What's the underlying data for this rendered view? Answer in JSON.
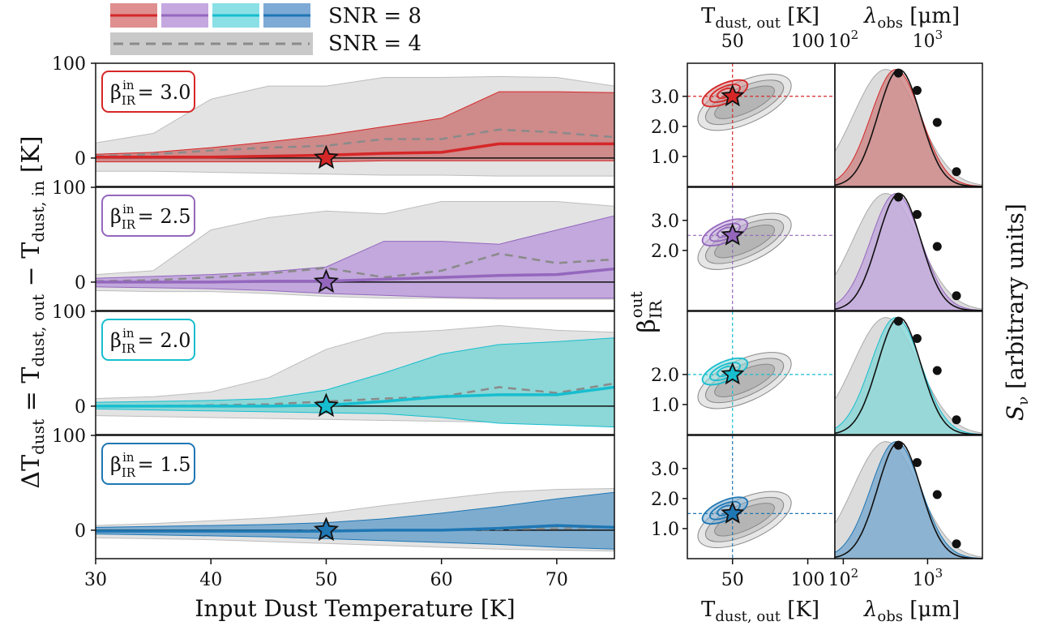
{
  "chart_data": [
    {
      "type": "line",
      "panel": "left",
      "xlabel": "Input Dust Temperature [K]",
      "ylabel": "ΔT_dust = T_dust, out − T_dust, in [K]",
      "xlim": [
        30,
        75
      ],
      "ylim": [
        -30,
        100
      ],
      "x_ticks": [
        "30",
        "40",
        "50",
        "60",
        "70"
      ],
      "y_ticks": [
        "0",
        "100"
      ],
      "legend": [
        {
          "label": "SNR = 8",
          "style": "solid colored lines with shaded bands",
          "colors": [
            "#d62728",
            "#9467bd",
            "#17becf",
            "#1f77b4"
          ]
        },
        {
          "label": "SNR = 4",
          "style": "grey dashed line with grey band"
        }
      ],
      "x": [
        30,
        35,
        40,
        45,
        50,
        55,
        60,
        65,
        70,
        75
      ],
      "rows": [
        {
          "beta_label": "β_IR^in = 3.0",
          "beta_main": "β",
          "beta_sub": "IR",
          "beta_sup": "in",
          "beta_val": "= 3.0",
          "color": "#d62728",
          "fill": "#cf8a8a",
          "star_x": 50,
          "snr8_median": [
            1,
            1,
            1,
            2,
            3,
            5,
            6,
            15,
            15,
            15
          ],
          "snr8_low": [
            -4,
            -4,
            -4,
            -4,
            -4,
            -3,
            -3,
            -3,
            -3,
            -3
          ],
          "snr8_high": [
            4,
            6,
            11,
            17,
            24,
            33,
            42,
            70,
            70,
            69
          ],
          "snr4_median": [
            2,
            4,
            8,
            11,
            13,
            20,
            20,
            30,
            27,
            22
          ],
          "snr4_low": [
            -14,
            -14,
            -15,
            -16,
            -17,
            -18,
            -18,
            -19,
            -19,
            -19
          ],
          "snr4_high": [
            16,
            26,
            62,
            76,
            76,
            85,
            85,
            86,
            85,
            76
          ]
        },
        {
          "beta_label": "β_IR^in = 2.5",
          "beta_main": "β",
          "beta_sub": "IR",
          "beta_sup": "in",
          "beta_val": "= 2.5",
          "color": "#9467bd",
          "fill": "#c2a8dc",
          "star_x": 50,
          "snr8_median": [
            0,
            0,
            0,
            1,
            1,
            3,
            5,
            7,
            8,
            14
          ],
          "snr8_low": [
            -5,
            -6,
            -7,
            -9,
            -12,
            -14,
            -16,
            -17,
            -17,
            -17
          ],
          "snr8_high": [
            4,
            6,
            8,
            11,
            16,
            43,
            43,
            40,
            55,
            70
          ],
          "snr4_median": [
            1,
            2,
            5,
            9,
            15,
            5,
            12,
            30,
            20,
            24
          ],
          "snr4_low": [
            -9,
            -10,
            -10,
            -12,
            -15,
            -17,
            -17,
            -18,
            -18,
            -18
          ],
          "snr4_high": [
            8,
            12,
            55,
            68,
            75,
            72,
            85,
            85,
            85,
            80
          ]
        },
        {
          "beta_label": "β_IR^in = 2.0",
          "beta_main": "β",
          "beta_sub": "IR",
          "beta_sup": "in",
          "beta_val": "= 2.0",
          "color": "#17becf",
          "fill": "#8cd7d7",
          "star_x": 50,
          "snr8_median": [
            0,
            0,
            0,
            0,
            1,
            5,
            10,
            12,
            12,
            20
          ],
          "snr8_low": [
            -3,
            -4,
            -5,
            -6,
            -7,
            -8,
            -12,
            -18,
            -20,
            -22
          ],
          "snr8_high": [
            4,
            5,
            6,
            8,
            17,
            35,
            55,
            65,
            68,
            72
          ],
          "snr4_median": [
            0,
            0,
            1,
            2,
            5,
            8,
            10,
            20,
            14,
            24
          ],
          "snr4_low": [
            -10,
            -11,
            -12,
            -13,
            -14,
            -15,
            -16,
            -17,
            -18,
            -18
          ],
          "snr4_high": [
            8,
            10,
            15,
            30,
            60,
            77,
            80,
            85,
            80,
            78
          ]
        },
        {
          "beta_label": "β_IR^in = 1.5",
          "beta_main": "β",
          "beta_sub": "IR",
          "beta_sup": "in",
          "beta_val": "= 1.5",
          "color": "#1f77b4",
          "fill": "#7eaccf",
          "star_x": 50,
          "snr8_median": [
            -1,
            -1,
            -1,
            -1,
            -1,
            0,
            0,
            2,
            5,
            3
          ],
          "snr8_low": [
            -4,
            -5,
            -6,
            -7,
            -9,
            -11,
            -13,
            -15,
            -18,
            -20
          ],
          "snr8_high": [
            3,
            4,
            5,
            6,
            8,
            12,
            18,
            25,
            33,
            40
          ],
          "snr4_median": [
            -1,
            -1,
            -1,
            -1,
            0,
            0,
            0,
            1,
            2,
            3
          ],
          "snr4_low": [
            -8,
            -9,
            -10,
            -12,
            -14,
            -16,
            -18,
            -20,
            -21,
            -22
          ],
          "snr4_high": [
            5,
            7,
            10,
            13,
            18,
            26,
            33,
            40,
            43,
            44
          ]
        }
      ]
    },
    {
      "type": "contour",
      "panel": "middle",
      "xlabel": "T_dust, out [K]",
      "top_label": "T_dust, out [K]",
      "ylabel": "β_IR^out",
      "x_ticks": [
        "50",
        "100"
      ],
      "y_ticks_by_row": [
        [
          "3.0",
          "2.0",
          "1.0"
        ],
        [
          "3.0",
          "2.0"
        ],
        [
          "2.0",
          "1.0"
        ],
        [
          "3.0",
          "2.0",
          "1.0"
        ]
      ],
      "input_T": 50,
      "input_beta": [
        3.0,
        2.5,
        2.0,
        1.5
      ]
    },
    {
      "type": "line",
      "panel": "right",
      "xlabel": "λ_obs [μm]",
      "top_label": "λ_obs [μm]",
      "ylabel": "S_ν [arbitrary units]",
      "x_ticks": [
        "10^2",
        "10^3"
      ],
      "x_scale": "log"
    }
  ],
  "text": {
    "legend_snr8": "SNR = 8",
    "legend_snr4": "SNR = 4",
    "left_xlabel": "Input Dust Temperature [K]",
    "mid_xlabel_main": "T",
    "mid_xlabel_sub": "dust, out",
    "mid_xlabel_unit": " [K]",
    "right_xlabel_main": "λ",
    "right_xlabel_sub": "obs",
    "right_xlabel_unit": " [μm]",
    "right_ylabel": "S",
    "right_ylabel_sub": "ν",
    "right_ylabel_unit": " [arbitrary units]",
    "mid_ylabel_main": "β",
    "mid_ylabel_sub": "IR",
    "mid_ylabel_sup": "out",
    "left_ylabel_a": "ΔT",
    "left_ylabel_a_sub": "dust",
    "left_ylabel_b": " = T",
    "left_ylabel_b_sub": "dust, out",
    "left_ylabel_c": " − T",
    "left_ylabel_c_sub": "dust, in",
    "left_ylabel_d": " [K]"
  }
}
